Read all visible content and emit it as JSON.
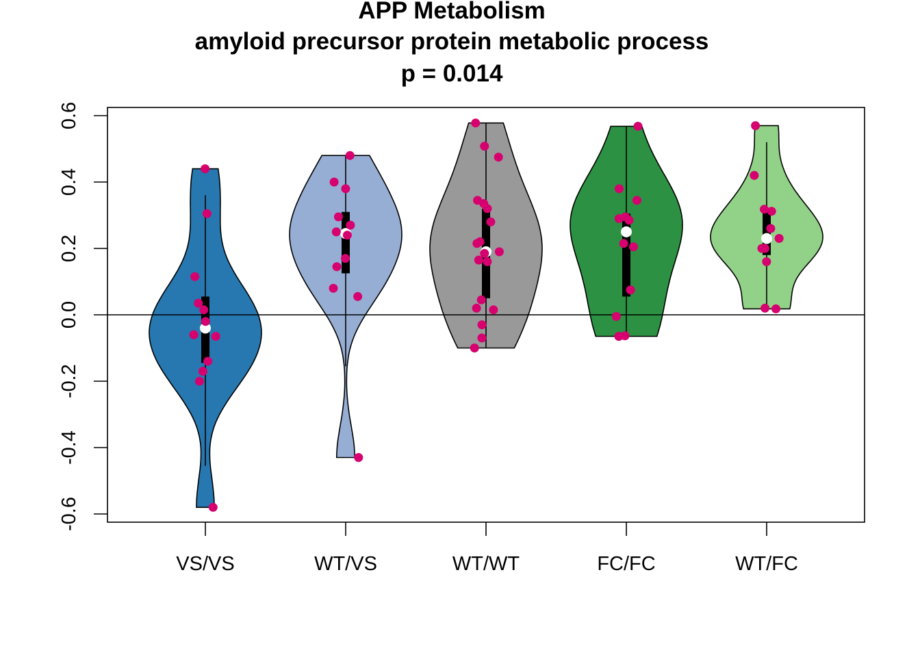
{
  "chart_data": {
    "type": "violin",
    "title": "APP Metabolism",
    "subtitle": "amyloid precursor protein metabolic process",
    "annotation": "p = 0.014",
    "xlabel": "",
    "ylabel": "",
    "ylim": [
      -0.62,
      0.63
    ],
    "y_ticks": [
      "-0.6",
      "-0.4",
      "-0.2",
      "0.0",
      "0.2",
      "0.4",
      "0.6"
    ],
    "reference_line": 0.0,
    "grid": false,
    "point_color": "#d6006f",
    "groups": [
      {
        "label": "VS/VS",
        "fill": "#2778b0",
        "median": -0.04,
        "box": [
          -0.145,
          0.055
        ],
        "whisker": [
          -0.455,
          0.36
        ],
        "violin_range": [
          -0.58,
          0.44
        ],
        "points": [
          0.44,
          0.305,
          0.115,
          0.035,
          0.015,
          -0.02,
          -0.06,
          -0.065,
          -0.14,
          -0.17,
          -0.2,
          -0.58
        ]
      },
      {
        "label": "WT/VS",
        "fill": "#96aed4",
        "median": 0.245,
        "box": [
          0.125,
          0.31
        ],
        "whisker": [
          -0.155,
          0.48
        ],
        "violin_range": [
          -0.43,
          0.48
        ],
        "points": [
          0.48,
          0.4,
          0.38,
          0.295,
          0.27,
          0.25,
          0.24,
          0.17,
          0.145,
          0.08,
          0.055,
          -0.43
        ]
      },
      {
        "label": "WT/WT",
        "fill": "#999999",
        "median": 0.19,
        "box": [
          0.05,
          0.32
        ],
        "whisker": [
          -0.1,
          0.578
        ],
        "violin_range": [
          -0.1,
          0.578
        ],
        "points": [
          0.578,
          0.508,
          0.475,
          0.345,
          0.335,
          0.32,
          0.28,
          0.22,
          0.215,
          0.19,
          0.185,
          0.165,
          0.16,
          0.045,
          0.02,
          0.015,
          -0.03,
          -0.07,
          -0.1
        ]
      },
      {
        "label": "FC/FC",
        "fill": "#2c9142",
        "median": 0.25,
        "box": [
          0.055,
          0.305
        ],
        "whisker": [
          -0.065,
          0.568
        ],
        "violin_range": [
          -0.065,
          0.568
        ],
        "points": [
          0.568,
          0.38,
          0.345,
          0.295,
          0.29,
          0.285,
          0.215,
          0.205,
          0.075,
          -0.005,
          -0.065,
          -0.063
        ]
      },
      {
        "label": "WT/FC",
        "fill": "#92d288",
        "median": 0.23,
        "box": [
          0.18,
          0.315
        ],
        "whisker": [
          0.02,
          0.52
        ],
        "violin_range": [
          0.018,
          0.57
        ],
        "points": [
          0.57,
          0.42,
          0.318,
          0.312,
          0.26,
          0.23,
          0.2,
          0.2,
          0.16,
          0.02,
          0.018
        ]
      }
    ]
  }
}
